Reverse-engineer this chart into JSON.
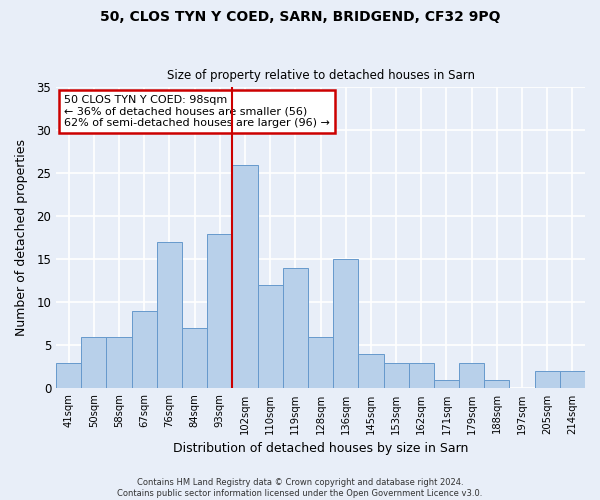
{
  "title1": "50, CLOS TYN Y COED, SARN, BRIDGEND, CF32 9PQ",
  "title2": "Size of property relative to detached houses in Sarn",
  "xlabel": "Distribution of detached houses by size in Sarn",
  "ylabel": "Number of detached properties",
  "categories": [
    "41sqm",
    "50sqm",
    "58sqm",
    "67sqm",
    "76sqm",
    "84sqm",
    "93sqm",
    "102sqm",
    "110sqm",
    "119sqm",
    "128sqm",
    "136sqm",
    "145sqm",
    "153sqm",
    "162sqm",
    "171sqm",
    "179sqm",
    "188sqm",
    "197sqm",
    "205sqm",
    "214sqm"
  ],
  "values": [
    3,
    6,
    6,
    9,
    17,
    7,
    18,
    26,
    12,
    14,
    6,
    15,
    4,
    3,
    3,
    1,
    3,
    1,
    0,
    2,
    2
  ],
  "bar_color": "#b8d0ea",
  "bar_edge_color": "#6699cc",
  "background_color": "#e8eef8",
  "grid_color": "#ffffff",
  "ylim": [
    0,
    35
  ],
  "yticks": [
    0,
    5,
    10,
    15,
    20,
    25,
    30,
    35
  ],
  "annotation_title": "50 CLOS TYN Y COED: 98sqm",
  "annotation_line1": "← 36% of detached houses are smaller (56)",
  "annotation_line2": "62% of semi-detached houses are larger (96) →",
  "annotation_box_color": "#ffffff",
  "annotation_box_edge": "#cc0000",
  "reference_line_color": "#cc0000",
  "ref_bar_index": 7,
  "footnote1": "Contains HM Land Registry data © Crown copyright and database right 2024.",
  "footnote2": "Contains public sector information licensed under the Open Government Licence v3.0."
}
